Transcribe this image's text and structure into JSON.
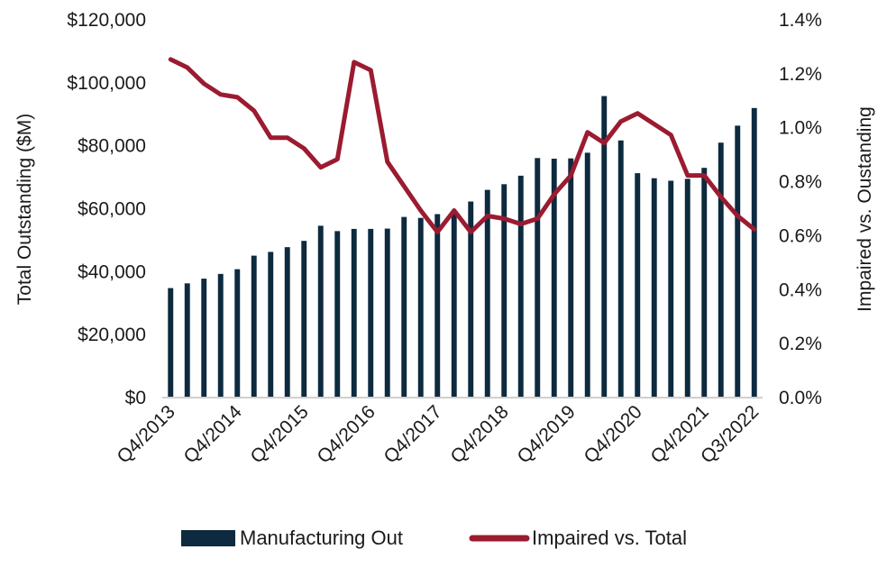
{
  "chart_data": {
    "type": "bar+line",
    "title": "",
    "categories": [
      "Q4/2013",
      "Q1/2014",
      "Q2/2014",
      "Q3/2014",
      "Q4/2014",
      "Q1/2015",
      "Q2/2015",
      "Q3/2015",
      "Q4/2015",
      "Q1/2016",
      "Q2/2016",
      "Q3/2016",
      "Q4/2016",
      "Q1/2017",
      "Q2/2017",
      "Q3/2017",
      "Q4/2017",
      "Q1/2018",
      "Q2/2018",
      "Q3/2018",
      "Q4/2018",
      "Q1/2019",
      "Q2/2019",
      "Q3/2019",
      "Q4/2019",
      "Q1/2020",
      "Q2/2020",
      "Q3/2020",
      "Q4/2020",
      "Q1/2021",
      "Q2/2021",
      "Q3/2021",
      "Q4/2021",
      "Q1/2022",
      "Q2/2022",
      "Q3/2022"
    ],
    "x_tick_labels": [
      "Q4/2013",
      "Q4/2014",
      "Q4/2015",
      "Q4/2016",
      "Q4/2017",
      "Q4/2018",
      "Q4/2019",
      "Q4/2020",
      "Q4/2021",
      "Q3/2022"
    ],
    "bar_series": {
      "name": "Manufacturing Out",
      "color": "#0d2a3e",
      "axis": "left",
      "values": [
        34500,
        36000,
        37500,
        39000,
        40500,
        44800,
        46000,
        47500,
        49500,
        54300,
        52600,
        53300,
        53300,
        53400,
        57100,
        56800,
        58000,
        59100,
        62000,
        65700,
        67500,
        70200,
        75800,
        75600,
        75700,
        77500,
        95500,
        81400,
        71000,
        69400,
        68600,
        69200,
        72700,
        80700,
        86100,
        91700
      ]
    },
    "line_series": {
      "name": "Impaired vs. Total",
      "color": "#9b1b30",
      "axis": "right",
      "values": [
        1.25,
        1.22,
        1.16,
        1.12,
        1.11,
        1.06,
        0.96,
        0.96,
        0.92,
        0.85,
        0.88,
        1.24,
        1.21,
        0.87,
        0.78,
        0.69,
        0.61,
        0.69,
        0.61,
        0.67,
        0.66,
        0.64,
        0.66,
        0.75,
        0.82,
        0.98,
        0.94,
        1.02,
        1.05,
        1.01,
        0.97,
        0.82,
        0.82,
        0.74,
        0.67,
        0.62
      ]
    },
    "left_axis": {
      "label": "Total Outstanding ($M)",
      "ylim": [
        0,
        120000
      ],
      "tick_labels": [
        "$0",
        "$20,000",
        "$40,000",
        "$60,000",
        "$80,000",
        "$100,000",
        "$120,000"
      ]
    },
    "right_axis": {
      "label": "Impaired vs. Oustanding",
      "ylim": [
        0,
        1.4
      ],
      "tick_labels": [
        "0.0%",
        "0.2%",
        "0.4%",
        "0.6%",
        "0.8%",
        "1.0%",
        "1.2%",
        "1.4%"
      ]
    },
    "legend": {
      "placement": "bottom",
      "entries": [
        "Manufacturing Out",
        "Impaired vs. Total"
      ]
    },
    "grid": false
  }
}
